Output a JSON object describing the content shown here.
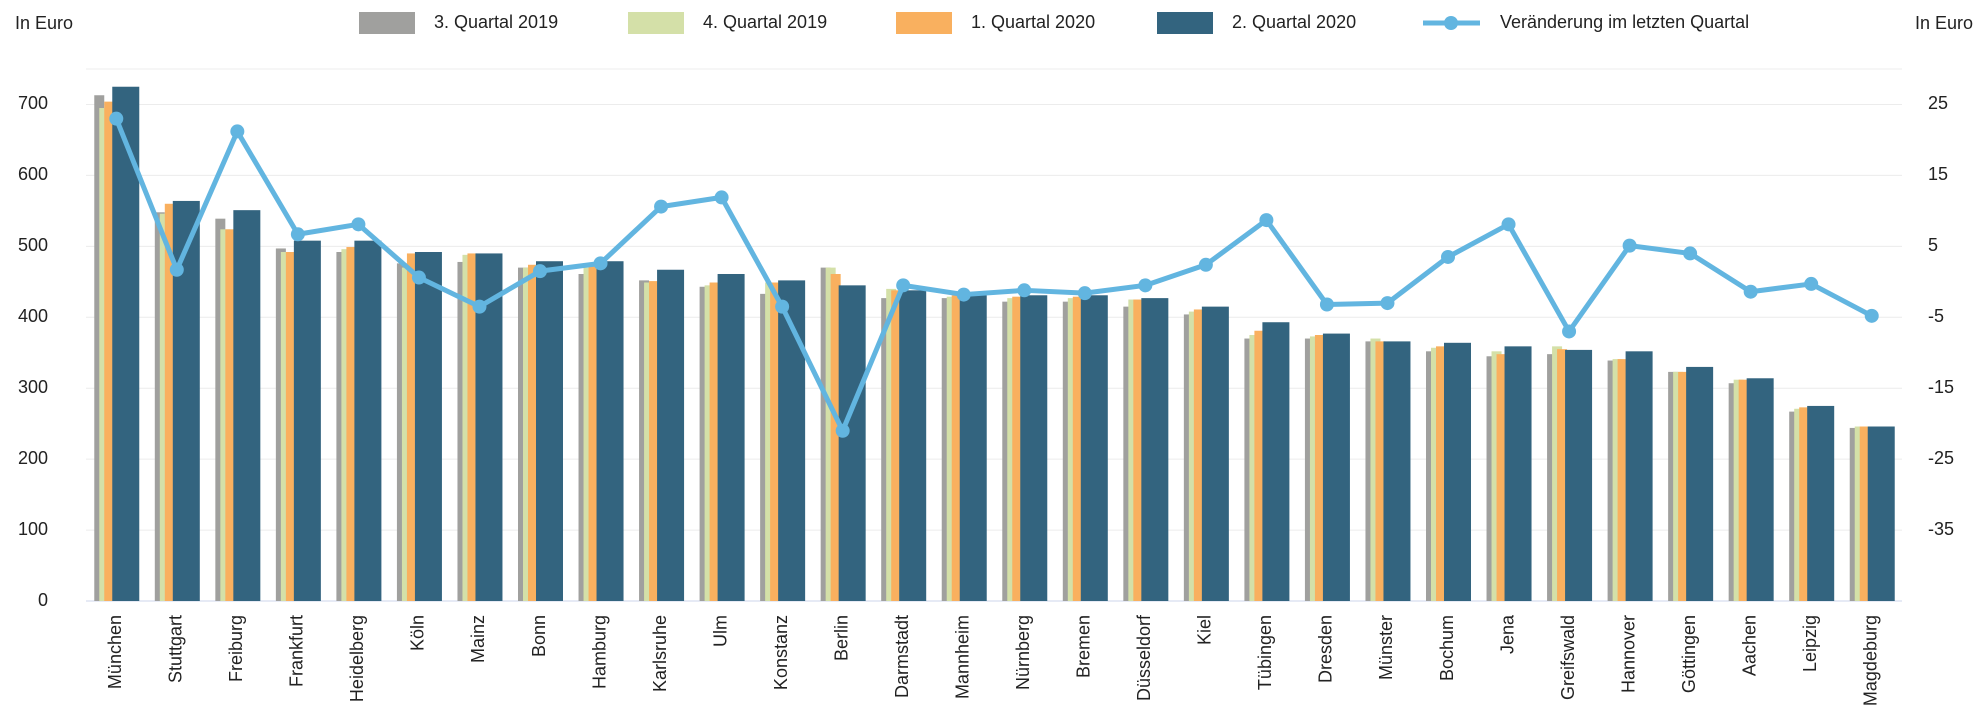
{
  "chart_data": {
    "type": "bar",
    "y_label": "In Euro",
    "y2_label": "In Euro",
    "categories": [
      "München",
      "Stuttgart",
      "Freiburg",
      "Frankfurt",
      "Heidelberg",
      "Köln",
      "Mainz",
      "Bonn",
      "Hamburg",
      "Karlsruhe",
      "Ulm",
      "Konstanz",
      "Berlin",
      "Darmstadt",
      "Mannheim",
      "Nürnberg",
      "Bremen",
      "Düsseldorf",
      "Kiel",
      "Tübingen",
      "Dresden",
      "Münster",
      "Bochum",
      "Jena",
      "Greifswald",
      "Hannover",
      "Göttingen",
      "Aachen",
      "Leipzig",
      "Magdeburg"
    ],
    "series": [
      {
        "name": "3. Quartal 2019",
        "color": "#a0a09e",
        "values": [
          713,
          548,
          539,
          497,
          492,
          476,
          478,
          470,
          461,
          452,
          443,
          433,
          470,
          427,
          427,
          422,
          422,
          415,
          404,
          370,
          370,
          366,
          352,
          345,
          348,
          339,
          323,
          307,
          267,
          244
        ]
      },
      {
        "name": "4. Quartal 2019",
        "color": "#d4e0a8",
        "values": [
          695,
          546,
          524,
          492,
          496,
          470,
          488,
          470,
          470,
          449,
          445,
          449,
          470,
          440,
          429,
          427,
          427,
          425,
          408,
          375,
          373,
          370,
          357,
          352,
          359,
          341,
          323,
          312,
          271,
          246
        ]
      },
      {
        "name": "1. Quartal 2020",
        "color": "#f9b05f",
        "values": [
          704,
          560,
          524,
          492,
          499,
          490,
          490,
          474,
          474,
          451,
          449,
          449,
          461,
          438,
          431,
          429,
          429,
          425,
          411,
          381,
          375,
          366,
          359,
          348,
          355,
          341,
          323,
          312,
          273,
          246
        ]
      },
      {
        "name": "2. Quartal 2020",
        "color": "#33647f",
        "values": [
          725,
          564,
          551,
          508,
          508,
          492,
          490,
          479,
          479,
          467,
          461,
          452,
          445,
          438,
          431,
          431,
          431,
          427,
          415,
          393,
          377,
          366,
          364,
          359,
          354,
          352,
          330,
          314,
          275,
          246
        ]
      },
      {
        "name": "Veränderung im letzten Quartal",
        "color": "#62b5e0",
        "type": "line",
        "axis": "y2",
        "values": [
          23.0,
          1.7,
          21.2,
          6.7,
          8.1,
          0.6,
          -3.5,
          1.5,
          2.6,
          10.6,
          11.9,
          -3.5,
          -21.0,
          -0.5,
          -1.8,
          -1.2,
          -1.6,
          -0.5,
          2.4,
          8.7,
          -3.2,
          -3.0,
          3.5,
          8.1,
          -7.0,
          5.1,
          4.0,
          -1.4,
          -0.3,
          -4.8
        ]
      }
    ],
    "ylim": [
      0,
      750
    ],
    "yticks": [
      0,
      100,
      200,
      300,
      400,
      500,
      600,
      700
    ],
    "y2lim": [
      -45,
      30
    ],
    "y2ticks": [
      -35,
      -25,
      -15,
      -5,
      5,
      15,
      25
    ],
    "grid": true,
    "legend": "top"
  }
}
